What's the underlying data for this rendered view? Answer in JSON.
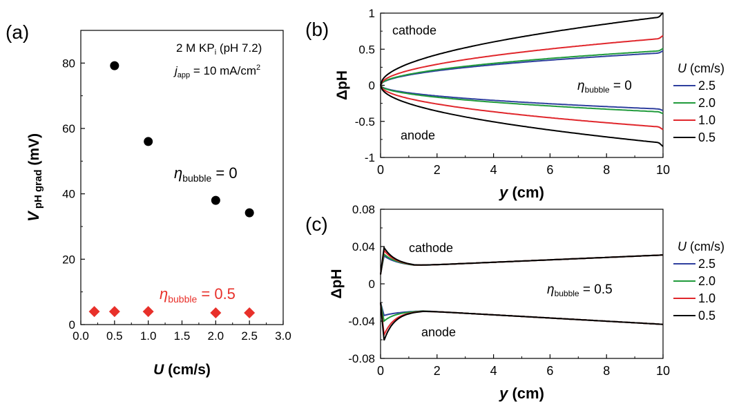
{
  "colors": {
    "black": "#000000",
    "red": "#e8302a",
    "blue": "#2e3f9e",
    "green": "#1f9a3a",
    "redline": "#e0262b"
  },
  "chart_data": [
    {
      "panel": "(a)",
      "type": "scatter",
      "xlabel": "U (cm/s)",
      "ylabel": "V pH grad (mV)",
      "xlim": [
        0.0,
        3.0
      ],
      "ylim": [
        0,
        90
      ],
      "xticks": [
        "0.0",
        "0.5",
        "1.0",
        "1.5",
        "2.0",
        "2.5",
        "3.0"
      ],
      "yticks": [
        "0",
        "20",
        "40",
        "60",
        "80"
      ],
      "annotations": {
        "electrolyte": "2 M KP",
        "electrolyte_sub": "i",
        "electrolyte_tail": " (pH 7.2)",
        "current_j": "j",
        "current_sub": "app",
        "current_tail": " = 10 mA/cm",
        "current_sup": "2"
      },
      "series": [
        {
          "label_eta": "η",
          "label_sub": "bubble",
          "label_tail": " = 0",
          "marker": "circle",
          "color": "#000000",
          "x": [
            0.5,
            1.0,
            2.0,
            2.5
          ],
          "y": [
            79.2,
            56.0,
            38.0,
            34.2
          ]
        },
        {
          "label_eta": "η",
          "label_sub": "bubble",
          "label_tail": " = 0.5",
          "marker": "diamond",
          "color": "#e8302a",
          "x": [
            0.2,
            0.5,
            1.0,
            2.0,
            2.5
          ],
          "y": [
            4.0,
            4.0,
            4.0,
            3.6,
            3.6
          ]
        }
      ]
    },
    {
      "panel": "(b)",
      "type": "line",
      "xlabel": "y (cm)",
      "ylabel": "ΔpH",
      "xlim": [
        0,
        10
      ],
      "ylim": [
        -1,
        1
      ],
      "xticks": [
        "0",
        "2",
        "4",
        "6",
        "8",
        "10"
      ],
      "yticks": [
        "-1",
        "-0.5",
        "0",
        "0.5",
        "1"
      ],
      "labels": {
        "top": "cathode",
        "bottom": "anode",
        "eta": "η",
        "eta_sub": "bubble",
        "eta_tail": " = 0"
      },
      "legend_title_u": "U",
      "legend_title_unit": " (cm/s)",
      "series": [
        {
          "name": "2.5",
          "color": "#2e3f9e",
          "cathode_end": 0.45,
          "anode_end": -0.33
        },
        {
          "name": "2.0",
          "color": "#1f9a3a",
          "cathode_end": 0.48,
          "anode_end": -0.37
        },
        {
          "name": "1.0",
          "color": "#e0262b",
          "cathode_end": 0.65,
          "anode_end": -0.58
        },
        {
          "name": "0.5",
          "color": "#000000",
          "cathode_end": 0.95,
          "anode_end": -0.8
        }
      ]
    },
    {
      "panel": "(c)",
      "type": "line",
      "xlabel": "y (cm)",
      "ylabel": "ΔpH",
      "xlim": [
        0,
        10
      ],
      "ylim": [
        -0.08,
        0.08
      ],
      "xticks": [
        "0",
        "2",
        "4",
        "6",
        "8",
        "10"
      ],
      "yticks": [
        "-0.08",
        "-0.04",
        "0",
        "0.04",
        "0.08"
      ],
      "labels": {
        "top": "cathode",
        "bottom": "anode",
        "eta": "η",
        "eta_sub": "bubble",
        "eta_tail": " = 0.5"
      },
      "legend_title_u": "U",
      "legend_title_unit": " (cm/s)",
      "series": [
        {
          "name": "2.5",
          "color": "#2e3f9e",
          "cathode_peak": 0.03,
          "anode_peak": -0.034
        },
        {
          "name": "2.0",
          "color": "#1f9a3a",
          "cathode_peak": 0.032,
          "anode_peak": -0.04
        },
        {
          "name": "1.0",
          "color": "#e0262b",
          "cathode_peak": 0.036,
          "anode_peak": -0.055
        },
        {
          "name": "0.5",
          "color": "#000000",
          "cathode_peak": 0.039,
          "anode_peak": -0.061
        }
      ]
    }
  ]
}
